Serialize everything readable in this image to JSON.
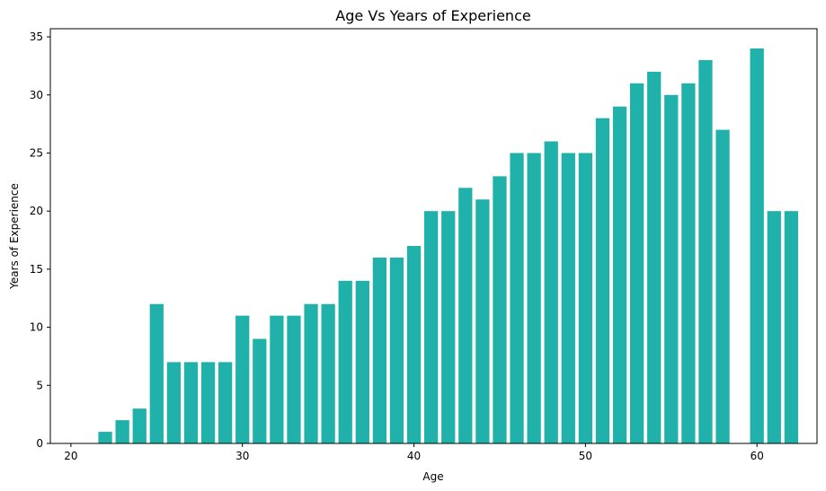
{
  "chart_data": {
    "type": "bar",
    "title": "Age Vs Years of Experience",
    "xlabel": "Age",
    "ylabel": "Years of Experience",
    "xlim": [
      18.8,
      63.5
    ],
    "ylim": [
      0,
      35.7
    ],
    "xticks": [
      20,
      30,
      40,
      50,
      60
    ],
    "yticks": [
      0,
      5,
      10,
      15,
      20,
      25,
      30,
      35
    ],
    "bar_color": "#20b2aa",
    "grid": false,
    "x": [
      22,
      23,
      24,
      25,
      26,
      27,
      28,
      29,
      30,
      31,
      32,
      33,
      34,
      35,
      36,
      37,
      38,
      39,
      40,
      41,
      42,
      43,
      44,
      45,
      46,
      47,
      48,
      49,
      50,
      51,
      52,
      53,
      54,
      55,
      56,
      57,
      58,
      60,
      61,
      62
    ],
    "values": [
      1,
      2,
      3,
      12,
      7,
      7,
      7,
      7,
      11,
      9,
      11,
      11,
      12,
      12,
      14,
      14,
      16,
      16,
      17,
      20,
      20,
      22,
      21,
      23,
      25,
      25,
      26,
      25,
      25,
      28,
      29,
      31,
      32,
      30,
      31,
      33,
      27,
      34,
      20,
      20
    ]
  }
}
